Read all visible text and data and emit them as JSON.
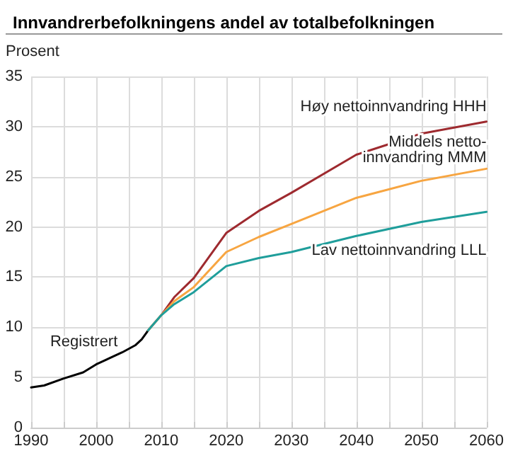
{
  "chart_data": {
    "type": "line",
    "title": "Innvandrerbefolkningens andel av totalbefolkningen",
    "ylabel": "Prosent",
    "xlim": [
      1990,
      2060
    ],
    "xticks": [
      1990,
      {
        "value": 1995,
        "label": null
      },
      2000,
      {
        "value": 2005,
        "label": null
      },
      2010,
      {
        "value": 2015,
        "label": null
      },
      2020,
      {
        "value": 2025,
        "label": null
      },
      2030,
      {
        "value": 2035,
        "label": null
      },
      2040,
      {
        "value": 2045,
        "label": null
      },
      2050,
      {
        "value": 2055,
        "label": null
      },
      2060
    ],
    "ylim": [
      0,
      35
    ],
    "yticks": [
      0,
      5,
      10,
      15,
      20,
      25,
      30,
      35
    ],
    "grid": true,
    "marker": "none",
    "line_style": "solid",
    "series": [
      {
        "name": "Registrert",
        "color": "#000000",
        "x": [
          1990,
          1992,
          1995,
          1998,
          2000,
          2002,
          2004,
          2006,
          2007,
          2008
        ],
        "values": [
          4.0,
          4.2,
          4.9,
          5.5,
          6.3,
          6.9,
          7.5,
          8.2,
          8.8,
          9.7
        ]
      },
      {
        "name": "Høy nettoinnvandring HHH",
        "color": "#9e2a2f",
        "x": [
          2008,
          2010,
          2012,
          2015,
          2020,
          2025,
          2030,
          2040,
          2050,
          2060
        ],
        "values": [
          9.7,
          11.2,
          13.0,
          14.9,
          19.4,
          21.6,
          23.4,
          27.2,
          29.3,
          30.5
        ]
      },
      {
        "name": "Middels netto-\ninnvandring MMM",
        "color": "#f7a541",
        "x": [
          2008,
          2010,
          2012,
          2015,
          2020,
          2025,
          2030,
          2040,
          2050,
          2060
        ],
        "values": [
          9.7,
          11.2,
          12.6,
          14.0,
          17.5,
          19.0,
          20.3,
          22.9,
          24.6,
          25.8
        ]
      },
      {
        "name": "Lav nettoinnvandring LLL",
        "color": "#1f9e9b",
        "x": [
          2008,
          2010,
          2012,
          2015,
          2020,
          2025,
          2030,
          2040,
          2050,
          2060
        ],
        "values": [
          9.7,
          11.2,
          12.3,
          13.5,
          16.1,
          16.9,
          17.5,
          19.1,
          20.5,
          21.5
        ]
      }
    ]
  }
}
